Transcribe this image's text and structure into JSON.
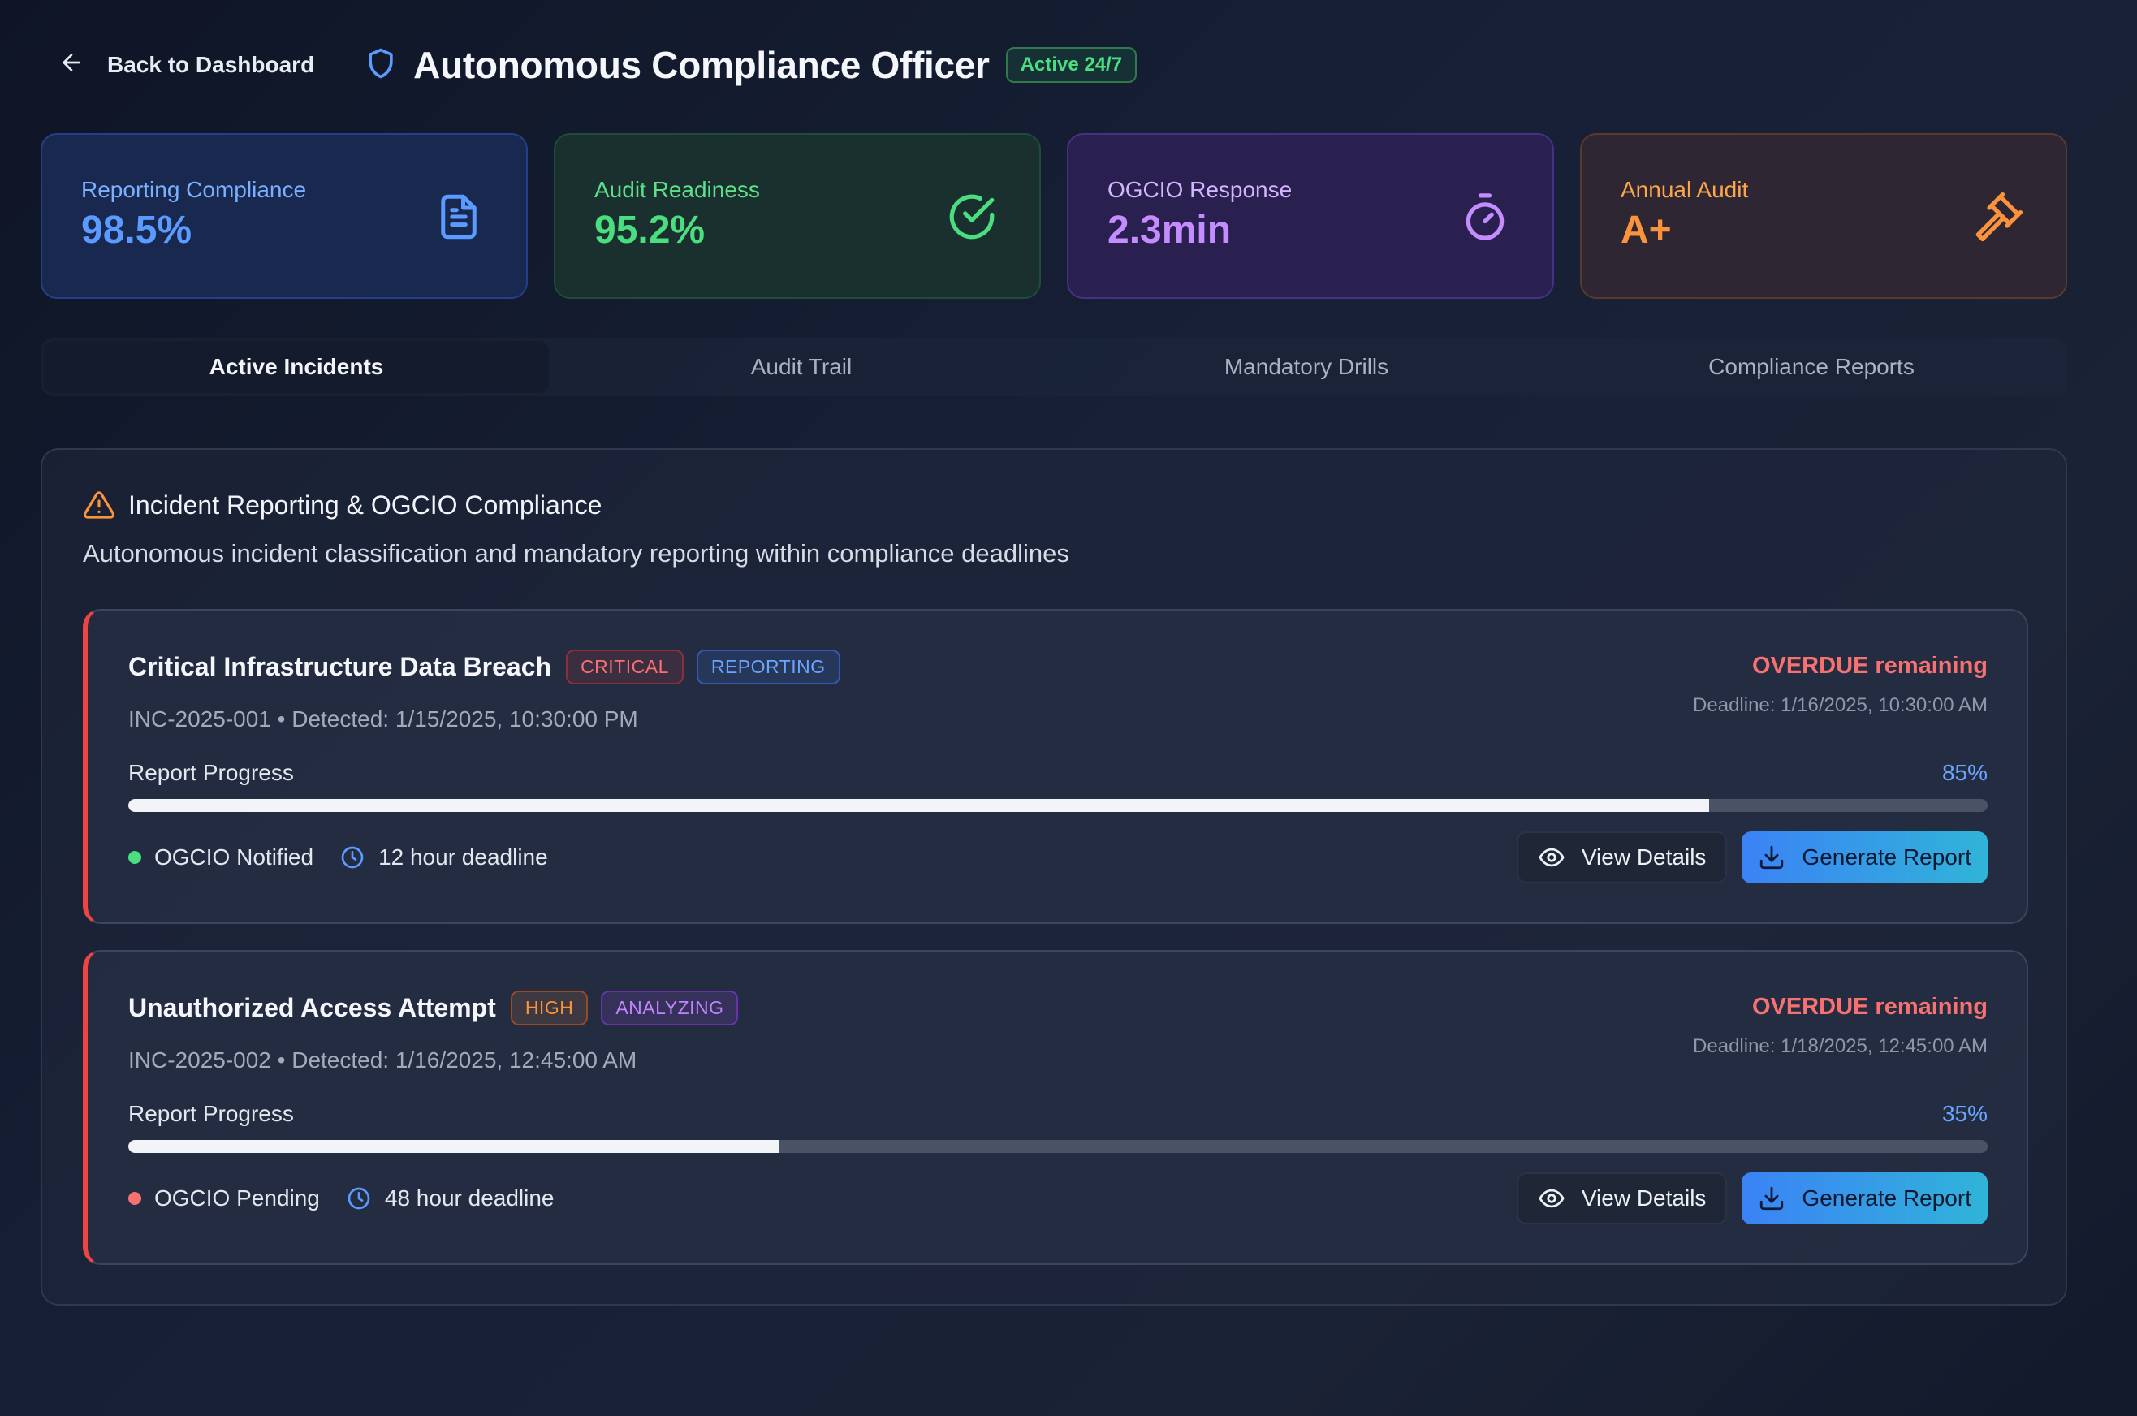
{
  "header": {
    "back_label": "Back to Dashboard",
    "title": "Autonomous Compliance Officer",
    "status_badge": "Active 24/7"
  },
  "stats": [
    {
      "label": "Reporting Compliance",
      "value": "98.5%",
      "icon": "document-icon",
      "color": "#5b9bff"
    },
    {
      "label": "Audit Readiness",
      "value": "95.2%",
      "icon": "check-circle-icon",
      "color": "#4ade80"
    },
    {
      "label": "OGCIO Response",
      "value": "2.3min",
      "icon": "timer-icon",
      "color": "#c58cff"
    },
    {
      "label": "Annual Audit",
      "value": "A+",
      "icon": "gavel-icon",
      "color": "#fb923c"
    }
  ],
  "tabs": [
    {
      "label": "Active Incidents",
      "active": true
    },
    {
      "label": "Audit Trail",
      "active": false
    },
    {
      "label": "Mandatory Drills",
      "active": false
    },
    {
      "label": "Compliance Reports",
      "active": false
    }
  ],
  "panel": {
    "title": "Incident Reporting & OGCIO Compliance",
    "description": "Autonomous incident classification and mandatory reporting within compliance deadlines"
  },
  "incidents": [
    {
      "title": "Critical Infrastructure Data Breach",
      "severity": "CRITICAL",
      "status": "REPORTING",
      "meta": "INC-2025-001 • Detected: 1/15/2025, 10:30:00 PM",
      "remaining": "OVERDUE remaining",
      "deadline": "Deadline: 1/16/2025, 10:30:00 AM",
      "progress_label": "Report Progress",
      "progress": 0.85,
      "progress_text": "85%",
      "ogcio_status": "OGCIO Notified",
      "ogcio_color": "#4ade80",
      "deadline_window": "12 hour deadline",
      "view_label": "View Details",
      "generate_label": "Generate Report"
    },
    {
      "title": "Unauthorized Access Attempt",
      "severity": "HIGH",
      "status": "ANALYZING",
      "meta": "INC-2025-002 • Detected: 1/16/2025, 12:45:00 AM",
      "remaining": "OVERDUE remaining",
      "deadline": "Deadline: 1/18/2025, 12:45:00 AM",
      "progress_label": "Report Progress",
      "progress": 0.35,
      "progress_text": "35%",
      "ogcio_status": "OGCIO Pending",
      "ogcio_color": "#f87171",
      "deadline_window": "48 hour deadline",
      "view_label": "View Details",
      "generate_label": "Generate Report"
    }
  ]
}
